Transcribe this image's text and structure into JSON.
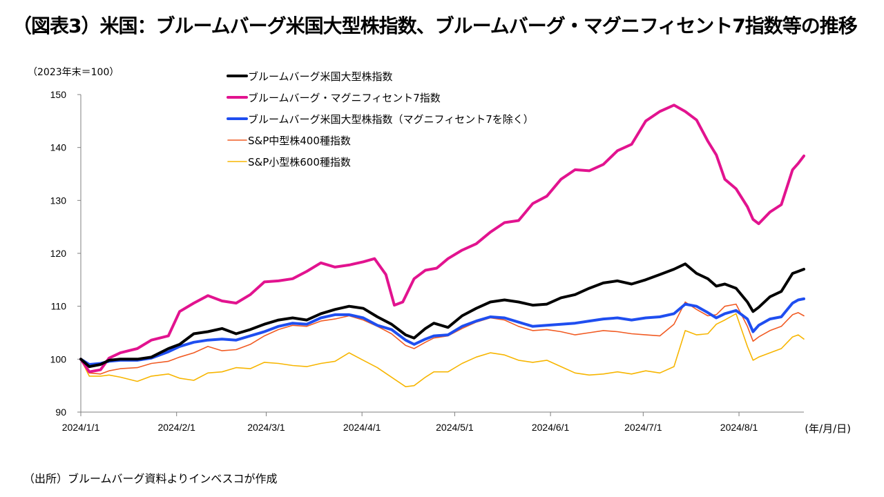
{
  "title": "（図表3）米国：ブルームバーグ米国大型株指数、ブルームバーグ・マグニフィセント7指数等の推移",
  "unit_note": "（2023年末＝100）",
  "source_note": "（出所）ブルームバーグ資料よりインベスコが作成",
  "chart_data": {
    "type": "line",
    "ylim": [
      90,
      150
    ],
    "yticks": [
      "90",
      "100",
      "110",
      "120",
      "130",
      "140",
      "150"
    ],
    "xticks": [
      "2024/1/1",
      "2024/2/1",
      "2024/3/1",
      "2024/4/1",
      "2024/5/1",
      "2024/6/1",
      "2024/7/1",
      "2024/8/1"
    ],
    "x_unit": "(年/月/日)",
    "x_start": "2024/1/1",
    "x_end": "2024/8/22",
    "legend_position": "top-left",
    "series": [
      {
        "name": "ブルームバーグ米国大型株指数",
        "color": "#000000",
        "width": 4,
        "points": [
          [
            0,
            100
          ],
          [
            3,
            98.6
          ],
          [
            7,
            99
          ],
          [
            10,
            99.8
          ],
          [
            14,
            100
          ],
          [
            20,
            100
          ],
          [
            25,
            100.4
          ],
          [
            31,
            102
          ],
          [
            35,
            102.8
          ],
          [
            40,
            104.8
          ],
          [
            45,
            105.2
          ],
          [
            50,
            105.8
          ],
          [
            55,
            104.8
          ],
          [
            60,
            105.6
          ],
          [
            65,
            106.6
          ],
          [
            70,
            107.4
          ],
          [
            75,
            107.8
          ],
          [
            80,
            107.4
          ],
          [
            85,
            108.6
          ],
          [
            90,
            109.4
          ],
          [
            95,
            110
          ],
          [
            100,
            109.6
          ],
          [
            105,
            108
          ],
          [
            110,
            106.6
          ],
          [
            115,
            104.6
          ],
          [
            118,
            104
          ],
          [
            122,
            105.8
          ],
          [
            125,
            106.8
          ],
          [
            130,
            106
          ],
          [
            135,
            108.2
          ],
          [
            140,
            109.6
          ],
          [
            145,
            110.8
          ],
          [
            150,
            111.2
          ],
          [
            155,
            110.8
          ],
          [
            160,
            110.2
          ],
          [
            165,
            110.4
          ],
          [
            170,
            111.6
          ],
          [
            175,
            112.2
          ],
          [
            180,
            113.4
          ],
          [
            185,
            114.4
          ],
          [
            190,
            114.8
          ],
          [
            195,
            114.2
          ],
          [
            200,
            115
          ],
          [
            205,
            116
          ],
          [
            210,
            117
          ],
          [
            214,
            118
          ],
          [
            218,
            116.2
          ],
          [
            222,
            115.2
          ],
          [
            225,
            113.8
          ],
          [
            228,
            114.2
          ],
          [
            232,
            113.4
          ],
          [
            236,
            110.8
          ],
          [
            238,
            109
          ],
          [
            240,
            109.8
          ],
          [
            244,
            111.8
          ],
          [
            248,
            112.8
          ],
          [
            252,
            116.2
          ],
          [
            254,
            116.6
          ],
          [
            256,
            117
          ]
        ]
      },
      {
        "name": "ブルームバーグ・マグニフィセント7指数",
        "color": "#e2138f",
        "width": 4,
        "points": [
          [
            0,
            100
          ],
          [
            3,
            97.6
          ],
          [
            7,
            98
          ],
          [
            10,
            100.2
          ],
          [
            14,
            101.2
          ],
          [
            20,
            102
          ],
          [
            25,
            103.6
          ],
          [
            31,
            104.4
          ],
          [
            35,
            109
          ],
          [
            40,
            110.6
          ],
          [
            45,
            112
          ],
          [
            50,
            111
          ],
          [
            55,
            110.6
          ],
          [
            60,
            112.2
          ],
          [
            65,
            114.6
          ],
          [
            70,
            114.8
          ],
          [
            75,
            115.2
          ],
          [
            80,
            116.6
          ],
          [
            85,
            118.2
          ],
          [
            90,
            117.4
          ],
          [
            95,
            117.8
          ],
          [
            100,
            118.4
          ],
          [
            104,
            119
          ],
          [
            108,
            116
          ],
          [
            111,
            110.2
          ],
          [
            114,
            110.8
          ],
          [
            118,
            115.2
          ],
          [
            122,
            116.8
          ],
          [
            126,
            117.2
          ],
          [
            130,
            119
          ],
          [
            135,
            120.6
          ],
          [
            140,
            121.8
          ],
          [
            145,
            124
          ],
          [
            150,
            125.8
          ],
          [
            155,
            126.2
          ],
          [
            160,
            129.4
          ],
          [
            165,
            130.8
          ],
          [
            170,
            134
          ],
          [
            175,
            135.8
          ],
          [
            180,
            135.6
          ],
          [
            185,
            136.8
          ],
          [
            190,
            139.4
          ],
          [
            195,
            140.6
          ],
          [
            200,
            145
          ],
          [
            205,
            146.8
          ],
          [
            210,
            148
          ],
          [
            214,
            146.8
          ],
          [
            218,
            145.2
          ],
          [
            222,
            141.2
          ],
          [
            225,
            138.6
          ],
          [
            228,
            134
          ],
          [
            232,
            132.2
          ],
          [
            236,
            128.8
          ],
          [
            238,
            126.4
          ],
          [
            240,
            125.6
          ],
          [
            244,
            127.8
          ],
          [
            248,
            129.2
          ],
          [
            252,
            135.8
          ],
          [
            254,
            137
          ],
          [
            256,
            138.4
          ]
        ]
      },
      {
        "name": "ブルームバーグ米国大型株指数（マグニフィセント7を除く）",
        "color": "#1f4ef0",
        "width": 4,
        "points": [
          [
            0,
            100
          ],
          [
            3,
            99
          ],
          [
            7,
            99.2
          ],
          [
            10,
            99.6
          ],
          [
            14,
            99.8
          ],
          [
            20,
            99.8
          ],
          [
            25,
            100.2
          ],
          [
            31,
            101.4
          ],
          [
            35,
            102.4
          ],
          [
            40,
            103.2
          ],
          [
            45,
            103.6
          ],
          [
            50,
            103.8
          ],
          [
            55,
            103.6
          ],
          [
            60,
            104.4
          ],
          [
            65,
            105.2
          ],
          [
            70,
            106.2
          ],
          [
            75,
            106.8
          ],
          [
            80,
            106.6
          ],
          [
            85,
            107.8
          ],
          [
            90,
            108.4
          ],
          [
            95,
            108.4
          ],
          [
            100,
            107.8
          ],
          [
            105,
            106.4
          ],
          [
            110,
            105.6
          ],
          [
            115,
            103.6
          ],
          [
            118,
            102.8
          ],
          [
            122,
            103.8
          ],
          [
            125,
            104.4
          ],
          [
            130,
            104.6
          ],
          [
            135,
            106.2
          ],
          [
            140,
            107.2
          ],
          [
            145,
            108
          ],
          [
            150,
            107.8
          ],
          [
            155,
            107
          ],
          [
            160,
            106.2
          ],
          [
            165,
            106.4
          ],
          [
            170,
            106.6
          ],
          [
            175,
            106.8
          ],
          [
            180,
            107.2
          ],
          [
            185,
            107.6
          ],
          [
            190,
            107.8
          ],
          [
            195,
            107.4
          ],
          [
            200,
            107.8
          ],
          [
            205,
            108
          ],
          [
            210,
            108.6
          ],
          [
            214,
            110.4
          ],
          [
            218,
            110
          ],
          [
            222,
            108.8
          ],
          [
            225,
            107.8
          ],
          [
            228,
            108.6
          ],
          [
            232,
            109.2
          ],
          [
            236,
            107.6
          ],
          [
            238,
            105.2
          ],
          [
            240,
            106.4
          ],
          [
            244,
            107.6
          ],
          [
            248,
            108
          ],
          [
            252,
            110.6
          ],
          [
            254,
            111.2
          ],
          [
            256,
            111.4
          ]
        ]
      },
      {
        "name": "S&P中型株400種指数",
        "color": "#f15a22",
        "width": 1.6,
        "points": [
          [
            0,
            100
          ],
          [
            3,
            97.4
          ],
          [
            7,
            97.2
          ],
          [
            10,
            97.8
          ],
          [
            14,
            98.2
          ],
          [
            20,
            98.4
          ],
          [
            25,
            99.2
          ],
          [
            31,
            99.6
          ],
          [
            35,
            100.4
          ],
          [
            40,
            101.2
          ],
          [
            45,
            102.4
          ],
          [
            50,
            101.6
          ],
          [
            55,
            101.8
          ],
          [
            60,
            102.8
          ],
          [
            65,
            104.4
          ],
          [
            70,
            105.6
          ],
          [
            75,
            106.4
          ],
          [
            80,
            106.2
          ],
          [
            85,
            107.2
          ],
          [
            90,
            107.6
          ],
          [
            95,
            108.2
          ],
          [
            100,
            107.4
          ],
          [
            105,
            106.2
          ],
          [
            110,
            104.8
          ],
          [
            115,
            102.6
          ],
          [
            118,
            102
          ],
          [
            122,
            103.2
          ],
          [
            125,
            104
          ],
          [
            130,
            104.4
          ],
          [
            135,
            105.8
          ],
          [
            140,
            107
          ],
          [
            145,
            107.8
          ],
          [
            150,
            107.4
          ],
          [
            155,
            106.2
          ],
          [
            160,
            105.4
          ],
          [
            165,
            105.6
          ],
          [
            170,
            105.2
          ],
          [
            175,
            104.6
          ],
          [
            180,
            105
          ],
          [
            185,
            105.4
          ],
          [
            190,
            105.2
          ],
          [
            195,
            104.8
          ],
          [
            200,
            104.6
          ],
          [
            205,
            104.4
          ],
          [
            210,
            106.6
          ],
          [
            214,
            110.8
          ],
          [
            218,
            109.4
          ],
          [
            222,
            108.2
          ],
          [
            225,
            108.4
          ],
          [
            228,
            110
          ],
          [
            232,
            110.4
          ],
          [
            236,
            106.2
          ],
          [
            238,
            103.4
          ],
          [
            240,
            104.2
          ],
          [
            244,
            105.4
          ],
          [
            248,
            106.2
          ],
          [
            252,
            108.4
          ],
          [
            254,
            108.8
          ],
          [
            256,
            108.2
          ]
        ]
      },
      {
        "name": "S&P小型株600種指数",
        "color": "#f7b500",
        "width": 1.6,
        "points": [
          [
            0,
            100
          ],
          [
            3,
            96.8
          ],
          [
            7,
            96.8
          ],
          [
            10,
            97
          ],
          [
            14,
            96.6
          ],
          [
            20,
            95.8
          ],
          [
            25,
            96.8
          ],
          [
            31,
            97.2
          ],
          [
            35,
            96.4
          ],
          [
            40,
            96
          ],
          [
            45,
            97.4
          ],
          [
            50,
            97.6
          ],
          [
            55,
            98.4
          ],
          [
            60,
            98.2
          ],
          [
            65,
            99.4
          ],
          [
            70,
            99.2
          ],
          [
            75,
            98.8
          ],
          [
            80,
            98.6
          ],
          [
            85,
            99.2
          ],
          [
            90,
            99.6
          ],
          [
            95,
            101.2
          ],
          [
            100,
            99.8
          ],
          [
            105,
            98.4
          ],
          [
            110,
            96.6
          ],
          [
            115,
            94.8
          ],
          [
            118,
            95
          ],
          [
            122,
            96.6
          ],
          [
            125,
            97.6
          ],
          [
            130,
            97.6
          ],
          [
            135,
            99.2
          ],
          [
            140,
            100.4
          ],
          [
            145,
            101.2
          ],
          [
            150,
            100.8
          ],
          [
            155,
            99.8
          ],
          [
            160,
            99.4
          ],
          [
            165,
            99.8
          ],
          [
            170,
            98.6
          ],
          [
            175,
            97.4
          ],
          [
            180,
            97
          ],
          [
            185,
            97.2
          ],
          [
            190,
            97.6
          ],
          [
            195,
            97.2
          ],
          [
            200,
            97.8
          ],
          [
            205,
            97.4
          ],
          [
            210,
            98.6
          ],
          [
            214,
            105.4
          ],
          [
            218,
            104.6
          ],
          [
            222,
            104.8
          ],
          [
            225,
            106.6
          ],
          [
            228,
            107.4
          ],
          [
            232,
            108.6
          ],
          [
            236,
            102.4
          ],
          [
            238,
            99.8
          ],
          [
            240,
            100.4
          ],
          [
            244,
            101.2
          ],
          [
            248,
            102
          ],
          [
            252,
            104.2
          ],
          [
            254,
            104.6
          ],
          [
            256,
            103.8
          ]
        ]
      }
    ]
  }
}
